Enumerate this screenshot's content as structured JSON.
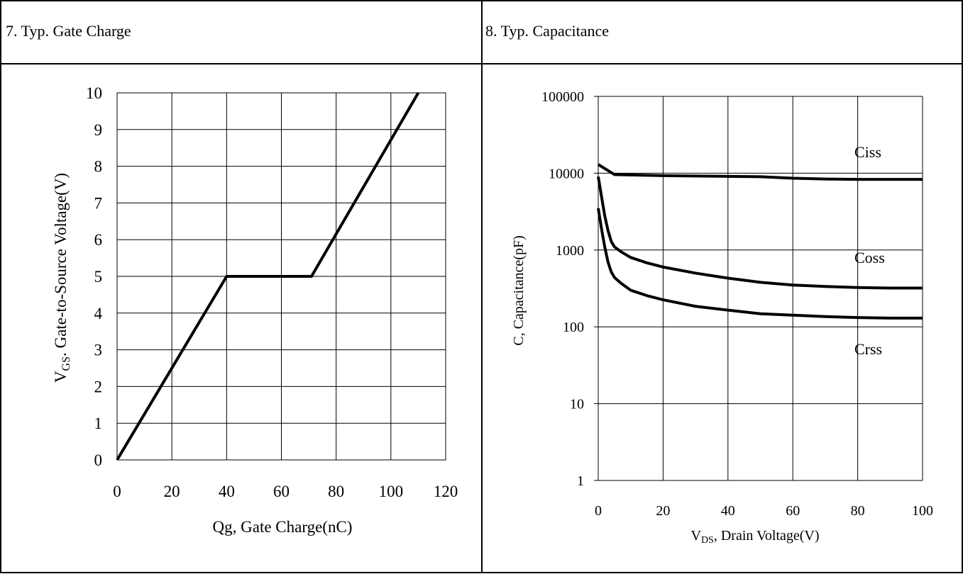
{
  "panels": [
    {
      "title": "7. Typ. Gate Charge"
    },
    {
      "title": "8. Typ. Capacitance"
    }
  ],
  "chart_data": [
    {
      "type": "line",
      "title": "7. Typ. Gate Charge",
      "xlabel": "Qg, Gate Charge(nC)",
      "ylabel_main": "V",
      "ylabel_sub": "GS",
      "ylabel_rest": ". Gate-to-Source Voltage(V)",
      "xlim": [
        0,
        120
      ],
      "ylim": [
        0,
        10
      ],
      "xticks": [
        "0",
        "20",
        "40",
        "60",
        "80",
        "100",
        "120"
      ],
      "yticks": [
        "0",
        "1",
        "2",
        "3",
        "4",
        "5",
        "6",
        "7",
        "8",
        "9",
        "10"
      ],
      "grid": true,
      "series": [
        {
          "x": [
            0,
            40,
            71,
            110
          ],
          "y": [
            0,
            5,
            5,
            10
          ]
        }
      ]
    },
    {
      "type": "line",
      "title": "8. Typ. Capacitance",
      "xlabel_main": "V",
      "xlabel_sub": "DS",
      "xlabel_rest": ", Drain Voltage(V)",
      "ylabel": "C, Capacitance(pF)",
      "xlim": [
        0,
        100
      ],
      "ylim": [
        1,
        100000
      ],
      "yscale": "log",
      "xticks": [
        "0",
        "20",
        "40",
        "60",
        "80",
        "100"
      ],
      "yticks": [
        "1",
        "10",
        "100",
        "1000",
        "10000",
        "100000"
      ],
      "grid": true,
      "series": [
        {
          "name": "Ciss",
          "x": [
            0,
            2,
            5,
            10,
            20,
            30,
            40,
            50,
            60,
            70,
            80,
            90,
            100
          ],
          "y": [
            13000,
            11500,
            9600,
            9500,
            9300,
            9200,
            9100,
            9000,
            8600,
            8400,
            8300,
            8300,
            8300
          ]
        },
        {
          "name": "Coss",
          "x": [
            0,
            1,
            2,
            3,
            4,
            5,
            7,
            10,
            15,
            20,
            30,
            40,
            50,
            60,
            70,
            80,
            90,
            100
          ],
          "y": [
            9000,
            5000,
            2800,
            1800,
            1300,
            1100,
            950,
            800,
            680,
            600,
            500,
            430,
            380,
            350,
            335,
            325,
            320,
            320
          ]
        },
        {
          "name": "Crss",
          "x": [
            0,
            1,
            2,
            3,
            4,
            5,
            7,
            10,
            15,
            20,
            30,
            40,
            50,
            60,
            70,
            80,
            90,
            100
          ],
          "y": [
            3500,
            1900,
            1100,
            700,
            520,
            440,
            370,
            300,
            255,
            225,
            185,
            165,
            148,
            142,
            136,
            132,
            130,
            130
          ]
        }
      ]
    }
  ]
}
